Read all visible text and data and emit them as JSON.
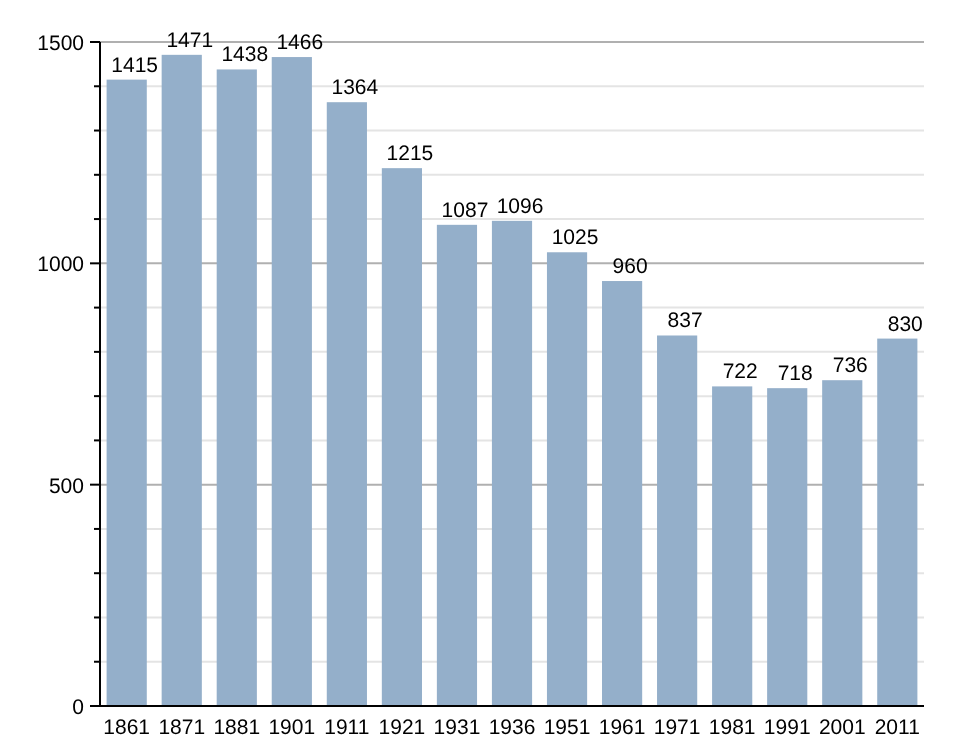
{
  "chart_data": {
    "type": "bar",
    "categories": [
      "1861",
      "1871",
      "1881",
      "1901",
      "1911",
      "1921",
      "1931",
      "1936",
      "1951",
      "1961",
      "1971",
      "1981",
      "1991",
      "2001",
      "2011"
    ],
    "values": [
      1415,
      1471,
      1438,
      1466,
      1364,
      1215,
      1087,
      1096,
      1025,
      960,
      837,
      722,
      718,
      736,
      830
    ],
    "color": "#94afca",
    "ylim": [
      0,
      1500
    ],
    "yticks": [
      0,
      {
        "value": 100,
        "label": null
      },
      {
        "value": 200,
        "label": null
      },
      {
        "value": 300,
        "label": null
      },
      {
        "value": 400,
        "label": null
      },
      500,
      {
        "value": 600,
        "label": null
      },
      {
        "value": 700,
        "label": null
      },
      {
        "value": 800,
        "label": null
      },
      {
        "value": 900,
        "label": null
      },
      1000,
      {
        "value": 1100,
        "label": null
      },
      {
        "value": 1200,
        "label": null
      },
      {
        "value": 1300,
        "label": null
      },
      {
        "value": 1400,
        "label": null
      },
      1500
    ],
    "grid": true,
    "data_labels": true
  }
}
